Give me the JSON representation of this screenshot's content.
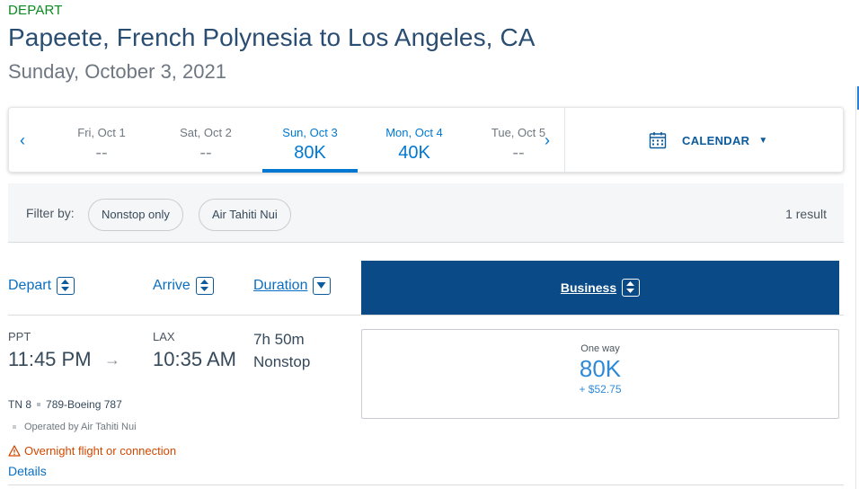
{
  "header": {
    "direction_label": "DEPART",
    "route_title": "Papeete, French Polynesia to Los Angeles, CA",
    "date": "Sunday, October 3, 2021"
  },
  "date_bar": {
    "prev_icon": "chevron-left-icon",
    "next_icon": "chevron-right-icon",
    "prev_label": "‹",
    "next_label": "›",
    "days": [
      {
        "label": "Fri, Oct 1",
        "price": "--"
      },
      {
        "label": "Sat, Oct 2",
        "price": "--"
      },
      {
        "label": "Sun, Oct 3",
        "price": "80K",
        "selected": true
      },
      {
        "label": "Mon, Oct 4",
        "price": "40K"
      },
      {
        "label": "Tue, Oct 5",
        "price": "--"
      }
    ],
    "calendar_label": "CALENDAR",
    "calendar_icon": "calendar-icon",
    "caret": "▼"
  },
  "filter": {
    "label": "Filter by:",
    "chips": [
      "Nonstop only",
      "Air Tahiti Nui"
    ],
    "result_count": "1 result"
  },
  "columns": {
    "depart": "Depart",
    "arrive": "Arrive",
    "duration": "Duration",
    "business": "Business"
  },
  "flight": {
    "origin_code": "PPT",
    "depart_time": "11:45 PM",
    "arrow": "→",
    "dest_code": "LAX",
    "arrive_time": "10:35 AM",
    "duration": "7h 50m",
    "stops": "Nonstop",
    "flight_number": "TN 8",
    "aircraft": "789-Boeing 787",
    "operated_by": "Operated by Air Tahiti Nui",
    "warning": "Overnight flight or connection",
    "details": "Details"
  },
  "fare": {
    "trip_type": "One way",
    "miles": "80K",
    "taxes": "+ $52.75"
  },
  "colors": {
    "accent": "#0078d2",
    "business_header": "#0a4a86",
    "depart_green": "#0a8a1f",
    "warning": "#d14800"
  }
}
